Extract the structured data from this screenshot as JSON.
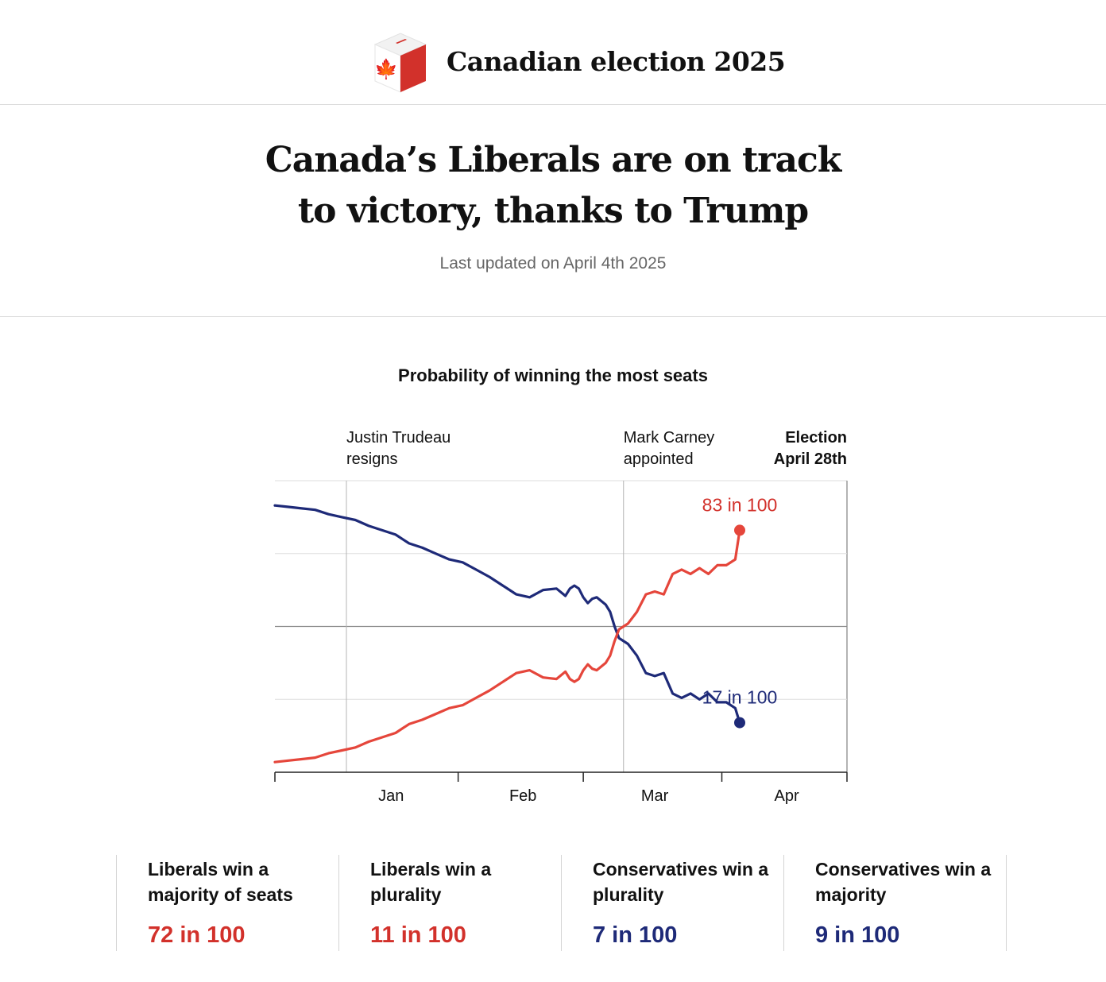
{
  "header": {
    "brand": "Canadian election 2025"
  },
  "article": {
    "headline_line1": "Canada’s Liberals are on track",
    "headline_line2": "to victory, thanks to Trump",
    "updated": "Last updated on April 4th 2025"
  },
  "colors": {
    "liberal": "#e5463b",
    "conservative": "#1e2a78",
    "liberal_text": "#d2312b",
    "conservative_text": "#1e2a78"
  },
  "chart_data": {
    "type": "line",
    "title": "Probability of winning the most seats",
    "x_ticks": [
      "Jan",
      "Feb",
      "Mar",
      "Apr"
    ],
    "x_range": [
      "2024-12-21",
      "2025-04-28"
    ],
    "ylim": [
      0,
      100
    ],
    "gridlines": [
      25,
      50,
      75
    ],
    "annotations": [
      {
        "date": "2025-01-06",
        "line1": "Justin Trudeau",
        "line2": "resigns"
      },
      {
        "date": "2025-03-09",
        "line1": "Mark Carney",
        "line2": "appointed"
      },
      {
        "date": "2025-04-28",
        "line1": "Election",
        "line2": "April 28th",
        "bold": true
      }
    ],
    "end_labels": {
      "liberal": "83 in 100",
      "conservative": "17 in 100"
    },
    "series": [
      {
        "key": "conservative",
        "dates": [
          "2024-12-21",
          "2024-12-24",
          "2024-12-27",
          "2024-12-30",
          "2025-01-02",
          "2025-01-05",
          "2025-01-08",
          "2025-01-11",
          "2025-01-14",
          "2025-01-17",
          "2025-01-20",
          "2025-01-23",
          "2025-01-26",
          "2025-01-29",
          "2025-02-01",
          "2025-02-04",
          "2025-02-07",
          "2025-02-10",
          "2025-02-13",
          "2025-02-16",
          "2025-02-19",
          "2025-02-22",
          "2025-02-24",
          "2025-02-25",
          "2025-02-26",
          "2025-02-27",
          "2025-02-28",
          "2025-03-01",
          "2025-03-02",
          "2025-03-03",
          "2025-03-05",
          "2025-03-06",
          "2025-03-07",
          "2025-03-08",
          "2025-03-09",
          "2025-03-10",
          "2025-03-12",
          "2025-03-14",
          "2025-03-16",
          "2025-03-18",
          "2025-03-20",
          "2025-03-22",
          "2025-03-24",
          "2025-03-26",
          "2025-03-28",
          "2025-03-30",
          "2025-04-01",
          "2025-04-03",
          "2025-04-04"
        ],
        "values": [
          91.5,
          91,
          90.5,
          90,
          88.5,
          87.5,
          86.5,
          84.5,
          83,
          81.5,
          78.5,
          77,
          75,
          73,
          72,
          69.5,
          67,
          64,
          61,
          60,
          62.5,
          63,
          60.5,
          63,
          64,
          63,
          60,
          58,
          59.5,
          60,
          57.5,
          55,
          50,
          46,
          45,
          44,
          40,
          34,
          33,
          34,
          27,
          25.5,
          27,
          25,
          27,
          24,
          24,
          22,
          17
        ]
      },
      {
        "key": "liberal",
        "dates": [
          "2024-12-21",
          "2024-12-24",
          "2024-12-27",
          "2024-12-30",
          "2025-01-02",
          "2025-01-05",
          "2025-01-08",
          "2025-01-11",
          "2025-01-14",
          "2025-01-17",
          "2025-01-20",
          "2025-01-23",
          "2025-01-26",
          "2025-01-29",
          "2025-02-01",
          "2025-02-04",
          "2025-02-07",
          "2025-02-10",
          "2025-02-13",
          "2025-02-16",
          "2025-02-19",
          "2025-02-22",
          "2025-02-24",
          "2025-02-25",
          "2025-02-26",
          "2025-02-27",
          "2025-02-28",
          "2025-03-01",
          "2025-03-02",
          "2025-03-03",
          "2025-03-05",
          "2025-03-06",
          "2025-03-07",
          "2025-03-08",
          "2025-03-09",
          "2025-03-10",
          "2025-03-12",
          "2025-03-14",
          "2025-03-16",
          "2025-03-18",
          "2025-03-20",
          "2025-03-22",
          "2025-03-24",
          "2025-03-26",
          "2025-03-28",
          "2025-03-30",
          "2025-04-01",
          "2025-04-03",
          "2025-04-04"
        ],
        "values": [
          3.5,
          4,
          4.5,
          5,
          6.5,
          7.5,
          8.5,
          10.5,
          12,
          13.5,
          16.5,
          18,
          20,
          22,
          23,
          25.5,
          28,
          31,
          34,
          35,
          32.5,
          32,
          34.5,
          32,
          31,
          32,
          35,
          37,
          35.5,
          35,
          37.5,
          40,
          45,
          49,
          50,
          51,
          55,
          61,
          62,
          61,
          68,
          69.5,
          68,
          70,
          68,
          71,
          71,
          73,
          83
        ]
      }
    ]
  },
  "outcomes": [
    {
      "label": "Liberals win a majority of seats",
      "value": "72 in 100",
      "party": "liberal"
    },
    {
      "label": "Liberals win a plurality",
      "value": "11 in 100",
      "party": "liberal"
    },
    {
      "label": "Conservatives win a plurality",
      "value": "7 in 100",
      "party": "conservative"
    },
    {
      "label": "Conservatives win a majority",
      "value": "9 in 100",
      "party": "conservative"
    }
  ]
}
